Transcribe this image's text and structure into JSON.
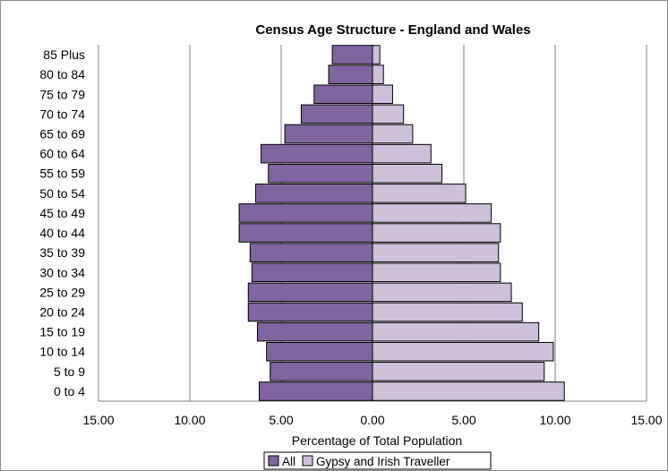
{
  "chart_data": {
    "type": "bar",
    "orientation": "horizontal-population-pyramid",
    "title": "Census Age Structure - England and Wales",
    "xlabel": "Percentage of Total Population",
    "ylabel": "",
    "xlim": [
      -15,
      15
    ],
    "x_ticks": [
      "15.00",
      "10.00",
      "5.00",
      "0.00",
      "5.00",
      "10.00",
      "15.00"
    ],
    "grid": "vertical",
    "legend_position": "bottom",
    "categories": [
      "0 to 4",
      "5 to 9",
      "10 to 14",
      "15 to 19",
      "20 to 24",
      "25 to 29",
      "30 to 34",
      "35 to 39",
      "40 to 44",
      "45 to 49",
      "50 to 54",
      "55 to 59",
      "60 to 64",
      "65 to 69",
      "70 to 74",
      "75 to 79",
      "80 to 84",
      "85 Plus"
    ],
    "series": [
      {
        "name": "All",
        "side": "left",
        "color": "#8064a2",
        "values": [
          6.2,
          5.6,
          5.8,
          6.3,
          6.8,
          6.8,
          6.6,
          6.7,
          7.3,
          7.3,
          6.4,
          5.7,
          6.1,
          4.8,
          3.9,
          3.2,
          2.4,
          2.2
        ]
      },
      {
        "name": "Gypsy and Irish Traveller",
        "side": "right",
        "color": "#ccc0da",
        "values": [
          10.5,
          9.4,
          9.9,
          9.1,
          8.2,
          7.6,
          7.0,
          6.9,
          7.0,
          6.5,
          5.1,
          3.8,
          3.2,
          2.2,
          1.7,
          1.1,
          0.6,
          0.4
        ]
      }
    ]
  }
}
